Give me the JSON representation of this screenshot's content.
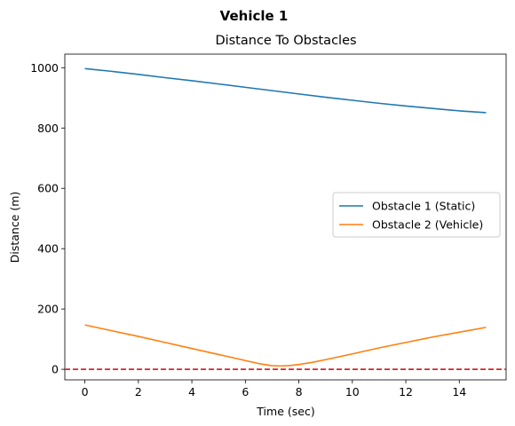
{
  "suptitle": "Vehicle 1",
  "chart_data": {
    "type": "line",
    "title": "Distance To Obstacles",
    "xlabel": "Time (sec)",
    "ylabel": "Distance (m)",
    "xlim": [
      -0.75,
      15.75
    ],
    "ylim": [
      -35,
      1045
    ],
    "xticks": [
      0,
      2,
      4,
      6,
      8,
      10,
      12,
      14
    ],
    "yticks": [
      0,
      200,
      400,
      600,
      800,
      1000
    ],
    "legend_position": "center-right",
    "grid": false,
    "series": [
      {
        "name": "Obstacle 1 (Static)",
        "color": "#1f77b4",
        "x": [
          0,
          1,
          2,
          3,
          4,
          5,
          6,
          7,
          8,
          9,
          10,
          11,
          12,
          13,
          14,
          15
        ],
        "y": [
          997,
          988,
          978,
          967,
          957,
          946,
          935,
          924,
          913,
          902,
          892,
          882,
          873,
          865,
          857,
          851
        ]
      },
      {
        "name": "Obstacle 2 (Vehicle)",
        "color": "#ff7f0e",
        "x": [
          0,
          1,
          2,
          3,
          4,
          5,
          6,
          6.5,
          7,
          7.3,
          7.6,
          8,
          8.5,
          9,
          10,
          11,
          12,
          13,
          14,
          15
        ],
        "y": [
          147,
          128,
          109,
          89,
          69,
          49,
          29,
          19,
          12,
          11,
          12,
          16,
          23,
          32,
          51,
          71,
          89,
          107,
          123,
          139
        ]
      }
    ],
    "reference_line": {
      "y": 0,
      "color": "#d62728",
      "style": "dashed"
    }
  }
}
